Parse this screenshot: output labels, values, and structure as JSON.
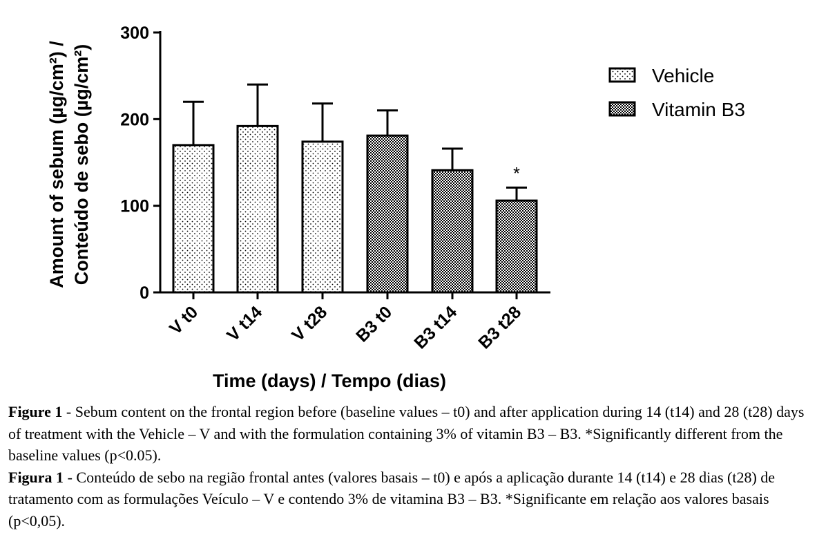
{
  "chart_data": {
    "type": "bar",
    "categories": [
      "V t0",
      "V t14",
      "V t28",
      "B3 t0",
      "B3 t14",
      "B3 t28"
    ],
    "series": [
      {
        "name": "Vehicle",
        "pattern": "dots",
        "values": [
          170,
          192,
          174,
          null,
          null,
          null
        ],
        "errors": [
          50,
          48,
          44,
          null,
          null,
          null
        ]
      },
      {
        "name": "Vitamin B3",
        "pattern": "checker",
        "values": [
          null,
          null,
          null,
          181,
          141,
          106
        ],
        "errors": [
          null,
          null,
          null,
          29,
          25,
          15
        ]
      }
    ],
    "significance": [
      "",
      "",
      "",
      "",
      "",
      "*"
    ],
    "ylabel_line1": "Amount of sebum (µg/cm²) /",
    "ylabel_line2": "Conteúdo de sebo (µg/cm²)",
    "xlabel": "Time (days) / Tempo (dias)",
    "ylim": [
      0,
      300
    ],
    "yticks": [
      0,
      100,
      200,
      300
    ],
    "legend_position": "top-right"
  },
  "caption": {
    "en_label": "Figure 1",
    "en_text": " - Sebum content on the frontal region before (baseline values – t0) and after application during 14 (t14) and 28 (t28) days of treatment with the Vehicle – V and with the formulation containing 3% of vitamin B3 – B3. *Significantly different from the baseline values (p<0.05).",
    "pt_label": "Figura 1",
    "pt_text": " - Conteúdo de sebo na região frontal antes (valores basais – t0) e após a aplicação durante 14 (t14) e 28 dias (t28) de tratamento com as formulações Veículo – V e contendo 3% de vitamina B3 – B3. *Significante em relação aos valores basais (p<0,05)."
  },
  "colors": {
    "ink": "#000000",
    "background": "#ffffff"
  }
}
